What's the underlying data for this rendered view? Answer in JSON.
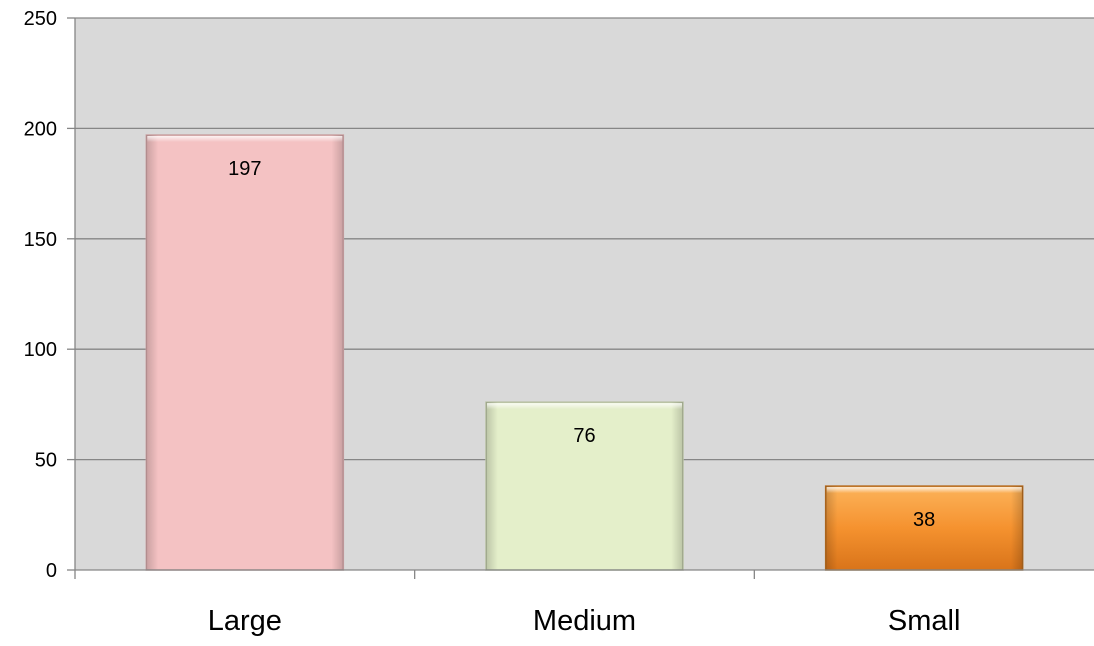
{
  "chart_data": {
    "type": "bar",
    "categories": [
      "Large",
      "Medium",
      "Small"
    ],
    "values": [
      197,
      76,
      38
    ],
    "title": "",
    "xlabel": "",
    "ylabel": "",
    "ylim": [
      0,
      250
    ],
    "yticks": [
      0,
      50,
      100,
      150,
      200,
      250
    ],
    "grid": true,
    "legend": "none",
    "data_labels": [
      "197",
      "76",
      "38"
    ],
    "colors": {
      "plot_background": "#d9d9d9",
      "gridline": "#868686",
      "axis": "#868686",
      "bars": [
        "#f4c2c3",
        "#e4efca",
        "#f59332"
      ],
      "bar_edges": [
        "#c9a0a1",
        "#b7c0a2",
        "#b46a1f"
      ],
      "text": "#000000"
    }
  }
}
